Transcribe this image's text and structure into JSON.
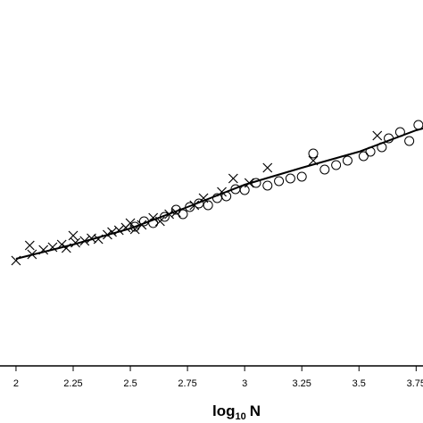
{
  "chart_data": {
    "type": "scatter",
    "x_label": {
      "main": "log",
      "subscript": "10",
      "suffix": "N"
    },
    "xlim": [
      1.93,
      3.78
    ],
    "ylim": [
      0,
      4.1
    ],
    "xticks": [
      2,
      2.25,
      2.5,
      2.75,
      3,
      3.25,
      3.5,
      3.75
    ],
    "color": "#000000",
    "series": [
      {
        "marker": "cross",
        "x": [
          2.0,
          2.06,
          2.07,
          2.12,
          2.16,
          2.2,
          2.22,
          2.25,
          2.26,
          2.3,
          2.33,
          2.36,
          2.4,
          2.42,
          2.45,
          2.48,
          2.5,
          2.52,
          2.55,
          2.6,
          2.63,
          2.67,
          2.7,
          2.78,
          2.82,
          2.9,
          2.95,
          3.02,
          3.1,
          3.3,
          3.58
        ],
        "values": [
          1.18,
          1.35,
          1.25,
          1.3,
          1.33,
          1.36,
          1.32,
          1.46,
          1.38,
          1.4,
          1.43,
          1.42,
          1.47,
          1.5,
          1.52,
          1.55,
          1.6,
          1.53,
          1.58,
          1.66,
          1.62,
          1.7,
          1.72,
          1.8,
          1.88,
          1.95,
          2.1,
          2.05,
          2.22,
          2.3,
          2.58
        ]
      },
      {
        "marker": "circle",
        "x": [
          2.52,
          2.56,
          2.6,
          2.65,
          2.7,
          2.73,
          2.76,
          2.8,
          2.84,
          2.88,
          2.92,
          2.96,
          3.0,
          3.05,
          3.1,
          3.15,
          3.2,
          3.25,
          3.3,
          3.35,
          3.4,
          3.45,
          3.52,
          3.55,
          3.6,
          3.63,
          3.68,
          3.72,
          3.76
        ],
        "values": [
          1.56,
          1.62,
          1.6,
          1.67,
          1.75,
          1.7,
          1.78,
          1.82,
          1.8,
          1.88,
          1.9,
          1.98,
          1.97,
          2.05,
          2.02,
          2.07,
          2.1,
          2.12,
          2.38,
          2.2,
          2.25,
          2.3,
          2.35,
          2.4,
          2.45,
          2.55,
          2.62,
          2.52,
          2.7
        ]
      },
      {
        "marker": "line",
        "x": [
          2.0,
          2.25,
          2.5,
          2.75,
          3.0,
          3.25,
          3.5,
          3.75,
          3.78
        ],
        "values": [
          1.2,
          1.36,
          1.54,
          1.78,
          2.03,
          2.22,
          2.4,
          2.64,
          2.66
        ]
      }
    ]
  }
}
